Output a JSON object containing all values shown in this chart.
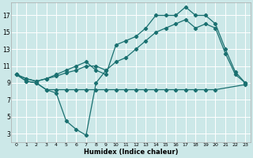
{
  "xlabel": "Humidex (Indice chaleur)",
  "bg_color": "#cce8e8",
  "grid_color": "#ffffff",
  "line_color": "#1a7070",
  "xlim": [
    -0.5,
    23.5
  ],
  "ylim": [
    2,
    18.5
  ],
  "xticks": [
    0,
    1,
    2,
    3,
    4,
    5,
    6,
    7,
    8,
    9,
    10,
    11,
    12,
    13,
    14,
    15,
    16,
    17,
    18,
    19,
    20,
    21,
    22,
    23
  ],
  "yticks": [
    3,
    5,
    7,
    9,
    11,
    13,
    15,
    17
  ],
  "line1_x": [
    0,
    1,
    2,
    3,
    4,
    5,
    6,
    7,
    8,
    9
  ],
  "line1_y": [
    10.0,
    9.2,
    9.0,
    8.2,
    7.8,
    4.5,
    3.5,
    2.8,
    9.0,
    10.5
  ],
  "line2_x": [
    0,
    1,
    2,
    3,
    4,
    5,
    6,
    7,
    8,
    9,
    10,
    11,
    12,
    13,
    14,
    15,
    16,
    17,
    18,
    19,
    20,
    23
  ],
  "line2_y": [
    10.0,
    9.2,
    9.0,
    8.2,
    8.2,
    8.2,
    8.2,
    8.2,
    8.2,
    8.2,
    8.2,
    8.2,
    8.2,
    8.2,
    8.2,
    8.2,
    8.2,
    8.2,
    8.2,
    8.2,
    8.2,
    8.8
  ],
  "line3_x": [
    0,
    1,
    2,
    3,
    4,
    5,
    6,
    7,
    8,
    9,
    10,
    11,
    12,
    13,
    14,
    15,
    16,
    17,
    18,
    19,
    20,
    21,
    22,
    23
  ],
  "line3_y": [
    10.0,
    9.5,
    9.2,
    9.5,
    10.0,
    10.5,
    11.0,
    11.5,
    10.5,
    10.0,
    13.5,
    14.0,
    14.5,
    15.5,
    17.0,
    17.0,
    17.0,
    18.0,
    17.0,
    17.0,
    16.0,
    13.0,
    10.3,
    9.0
  ],
  "line4_x": [
    0,
    1,
    2,
    3,
    4,
    5,
    6,
    7,
    8,
    9,
    10,
    11,
    12,
    13,
    14,
    15,
    16,
    17,
    18,
    19,
    20,
    21,
    22,
    23
  ],
  "line4_y": [
    10.0,
    9.5,
    9.2,
    9.5,
    9.8,
    10.2,
    10.5,
    11.0,
    11.0,
    10.5,
    11.5,
    12.0,
    13.0,
    14.0,
    15.0,
    15.5,
    16.0,
    16.5,
    15.5,
    16.0,
    15.5,
    12.5,
    10.0,
    9.0
  ]
}
